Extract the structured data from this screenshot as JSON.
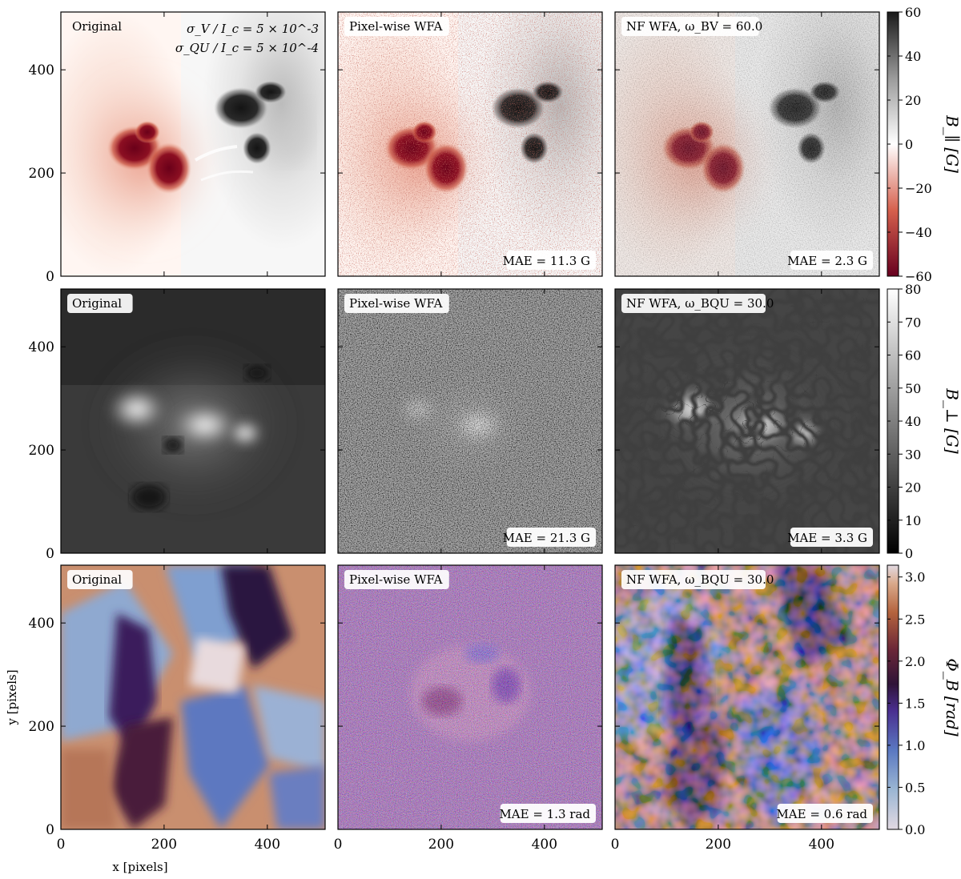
{
  "figure": {
    "rows": [
      {
        "quantity": "B_parallel",
        "colormap": "red-white-black",
        "panels": [
          {
            "tag": "Original",
            "note_lines": [
              "σ_V / I_c = 5 × 10^-3",
              "σ_QU / I_c = 5 × 10^-4"
            ],
            "mae": ""
          },
          {
            "tag": "Pixel-wise WFA",
            "note_lines": [],
            "mae": "MAE = 11.3 G"
          },
          {
            "tag": "NF WFA, ω_BV = 60.0",
            "note_lines": [],
            "mae": "MAE = 2.3 G"
          }
        ],
        "colorbar": {
          "label": "B_∥ [G]",
          "ticks": [
            "60",
            "40",
            "20",
            "0",
            "−20",
            "−40",
            "−60"
          ],
          "range": [
            -60,
            60
          ]
        }
      },
      {
        "quantity": "B_perp",
        "colormap": "grayscale",
        "panels": [
          {
            "tag": "Original",
            "note_lines": [],
            "mae": ""
          },
          {
            "tag": "Pixel-wise WFA",
            "note_lines": [],
            "mae": "MAE = 21.3 G"
          },
          {
            "tag": "NF WFA, ω_BQU = 30.0",
            "note_lines": [],
            "mae": "MAE = 3.3 G"
          }
        ],
        "colorbar": {
          "label": "B_⊥ [G]",
          "ticks": [
            "80",
            "70",
            "60",
            "50",
            "40",
            "30",
            "20",
            "10",
            "0"
          ],
          "range": [
            0,
            80
          ]
        }
      },
      {
        "quantity": "Phi_B",
        "colormap": "twilight",
        "panels": [
          {
            "tag": "Original",
            "note_lines": [],
            "mae": ""
          },
          {
            "tag": "Pixel-wise WFA",
            "note_lines": [],
            "mae": "MAE = 1.3 rad"
          },
          {
            "tag": "NF WFA, ω_BQU = 30.0",
            "note_lines": [],
            "mae": "MAE = 0.6 rad"
          }
        ],
        "colorbar": {
          "label": "Φ_B [rad]",
          "ticks": [
            "3.0",
            "2.5",
            "2.0",
            "1.5",
            "1.0",
            "0.5",
            "0.0"
          ],
          "range": [
            0,
            3.14
          ]
        }
      }
    ],
    "y_ticks": [
      "400",
      "200",
      "0"
    ],
    "x_ticks": [
      "0",
      "200",
      "400"
    ],
    "y_axis_label": "y [pixels]",
    "x_axis_label": "x [pixels]"
  },
  "chart_data": {
    "type": "heatmap",
    "layout": "3 rows × 3 columns of image panels with one colorbar per row",
    "x_axis": {
      "label": "x [pixels]",
      "range": [
        0,
        512
      ],
      "ticks": [
        0,
        200,
        400
      ]
    },
    "y_axis": {
      "label": "y [pixels]",
      "range": [
        0,
        512
      ],
      "ticks": [
        0,
        200,
        400
      ]
    },
    "series": [
      {
        "name": "Original",
        "quantity": "B_∥",
        "unit": "G",
        "mae": null
      },
      {
        "name": "Pixel-wise WFA",
        "quantity": "B_∥",
        "unit": "G",
        "mae": 11.3
      },
      {
        "name": "NF WFA, ω_BV = 60.0",
        "quantity": "B_∥",
        "unit": "G",
        "mae": 2.3
      },
      {
        "name": "Original",
        "quantity": "B_⊥",
        "unit": "G",
        "mae": null
      },
      {
        "name": "Pixel-wise WFA",
        "quantity": "B_⊥",
        "unit": "G",
        "mae": 21.3
      },
      {
        "name": "NF WFA, ω_BQU = 30.0",
        "quantity": "B_⊥",
        "unit": "G",
        "mae": 3.3
      },
      {
        "name": "Original",
        "quantity": "Φ_B",
        "unit": "rad",
        "mae": null
      },
      {
        "name": "Pixel-wise WFA",
        "quantity": "Φ_B",
        "unit": "rad",
        "mae": 1.3
      },
      {
        "name": "NF WFA, ω_BQU = 30.0",
        "quantity": "Φ_B",
        "unit": "rad",
        "mae": 0.6
      }
    ],
    "colorbars": [
      {
        "label": "B_∥ [G]",
        "range": [
          -60,
          60
        ],
        "ticks": [
          -60,
          -40,
          -20,
          0,
          20,
          40,
          60
        ]
      },
      {
        "label": "B_⊥ [G]",
        "range": [
          0,
          80
        ],
        "ticks": [
          0,
          10,
          20,
          30,
          40,
          50,
          60,
          70,
          80
        ]
      },
      {
        "label": "Φ_B [rad]",
        "range": [
          0,
          3.14
        ],
        "ticks": [
          0.0,
          0.5,
          1.0,
          1.5,
          2.0,
          2.5,
          3.0
        ]
      }
    ],
    "noise": {
      "sigma_V_over_Ic": "5 × 10^-3",
      "sigma_QU_over_Ic": "5 × 10^-4"
    }
  }
}
